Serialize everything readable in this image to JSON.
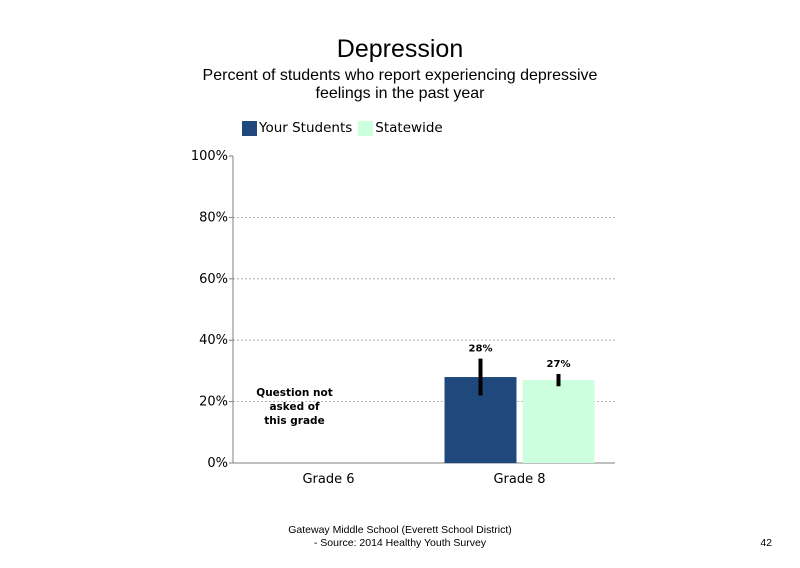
{
  "chart_data": {
    "type": "bar",
    "title": "Depression",
    "subtitle": "Percent of students who report experiencing depressive feelings in the past year",
    "categories": [
      "Grade 6",
      "Grade 8"
    ],
    "series": [
      {
        "name": "Your Students",
        "color": "#1f497d",
        "values": [
          null,
          28
        ],
        "labels": [
          "",
          "28%"
        ],
        "error_range": [
          null,
          [
            22,
            34
          ]
        ]
      },
      {
        "name": "Statewide",
        "color": "#ccffdd",
        "values": [
          null,
          27
        ],
        "labels": [
          "",
          "27%"
        ],
        "error_range": [
          null,
          [
            25,
            29
          ]
        ]
      }
    ],
    "ylim": [
      0,
      100
    ],
    "yticks": [
      "0%",
      "20%",
      "40%",
      "60%",
      "80%",
      "100%"
    ],
    "grid": true,
    "legend_position": "top-left",
    "annotations": [
      {
        "category": "Grade 6",
        "lines": [
          "Question not",
          "asked of",
          "this grade"
        ]
      }
    ]
  },
  "footer": {
    "line1": "Gateway Middle School (Everett School District)",
    "line2": "- Source: 2014 Healthy Youth Survey"
  },
  "page_number": "42"
}
